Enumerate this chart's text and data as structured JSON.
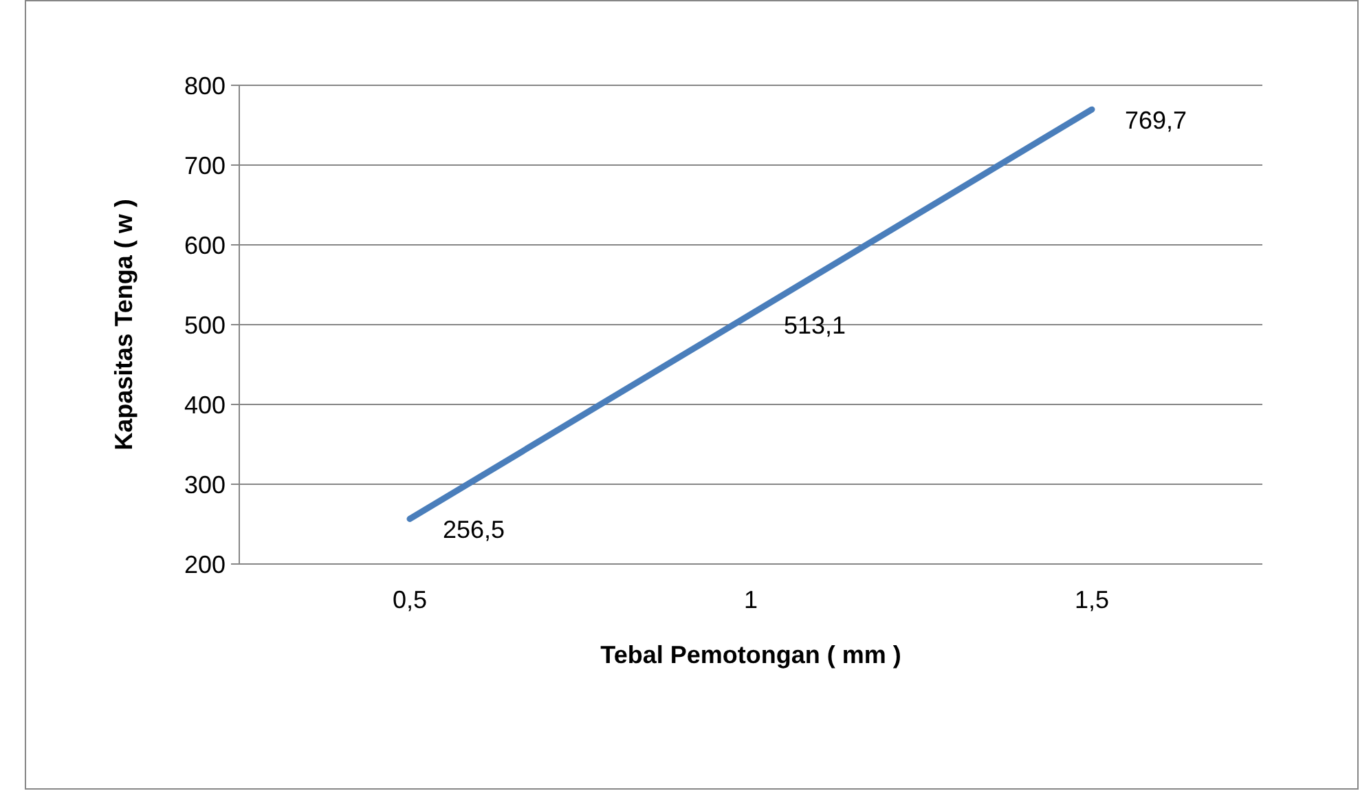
{
  "chart_data": {
    "type": "line",
    "xlabel": "Tebal Pemotongan ( mm )",
    "ylabel": "Kapasitas Tenga ( w )",
    "categories": [
      "0,5",
      "1",
      "1,5"
    ],
    "series": [
      {
        "color": "#4a7ebb",
        "values": [
          256.5,
          513.1,
          769.7
        ],
        "value_labels": [
          "256,5",
          "513,1",
          "769,7"
        ]
      }
    ],
    "ylim": [
      200,
      800
    ],
    "yticks": [
      200,
      300,
      400,
      500,
      600,
      700,
      800
    ],
    "grid": "y",
    "marker": "none",
    "line_style": "solid"
  }
}
